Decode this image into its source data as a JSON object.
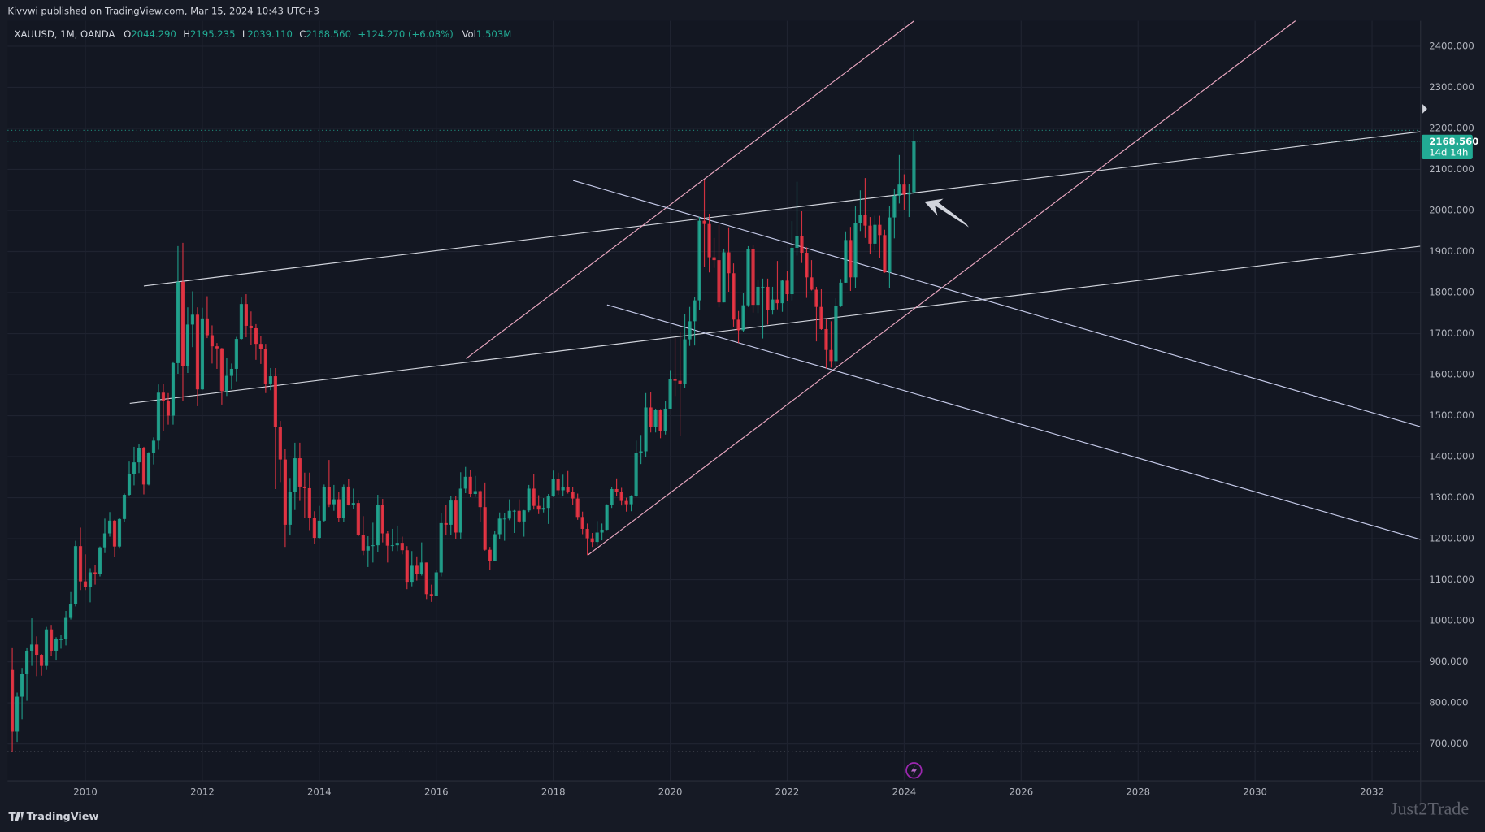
{
  "header": {
    "publisher": "Kivvwi published on TradingView.com, Mar 15, 2024 10:43 UTC+3"
  },
  "footer": {
    "brand": "TradingView",
    "watermark": "Just2Trade"
  },
  "chart_data": {
    "type": "candlestick",
    "legend": {
      "symbol": "XAUUSD, 1M, OANDA",
      "o_label": "O",
      "o": "2044.290",
      "h_label": "H",
      "h": "2195.235",
      "l_label": "L",
      "l": "2039.110",
      "c_label": "C",
      "c": "2168.560",
      "change": "+124.270 (+6.08%)",
      "vol_label": "Vol",
      "vol": "1.503M"
    },
    "last_price_label": "2168.560",
    "countdown": "14d 14h",
    "up_color": "#22ab94",
    "down_color": "#f23645",
    "xlim": [
      2008.67,
      2032.83
    ],
    "ylim": [
      610,
      2462
    ],
    "xticks": [
      2010,
      2012,
      2014,
      2016,
      2018,
      2020,
      2022,
      2024,
      2026,
      2028,
      2030,
      2032
    ],
    "yticks": [
      {
        "value": 700,
        "label": "700.000"
      },
      {
        "value": 800,
        "label": "800.000"
      },
      {
        "value": 900,
        "label": "900.000"
      },
      {
        "value": 1000,
        "label": "1000.000"
      },
      {
        "value": 1100,
        "label": "1100.000"
      },
      {
        "value": 1200,
        "label": "1200.000"
      },
      {
        "value": 1300,
        "label": "1300.000"
      },
      {
        "value": 1400,
        "label": "1400.000"
      },
      {
        "value": 1500,
        "label": "1500.000"
      },
      {
        "value": 1600,
        "label": "1600.000"
      },
      {
        "value": 1700,
        "label": "1700.000"
      },
      {
        "value": 1800,
        "label": "1800.000"
      },
      {
        "value": 1900,
        "label": "1900.000"
      },
      {
        "value": 2000,
        "label": "2000.000"
      },
      {
        "value": 2100,
        "label": "2100.000"
      },
      {
        "value": 2200,
        "label": "2200.000"
      },
      {
        "value": 2300,
        "label": "2300.000"
      },
      {
        "value": 2400,
        "label": "2400.000"
      }
    ],
    "grid": true,
    "trendlines": [
      {
        "x": [
          2011.0,
          2032.83
        ],
        "y": [
          1816,
          2192
        ],
        "color": "#d1d4dc"
      },
      {
        "x": [
          2010.76,
          2032.83
        ],
        "y": [
          1530,
          1913
        ],
        "color": "#d1d4dc"
      },
      {
        "x": [
          2016.51,
          2024.17
        ],
        "y": [
          1639,
          2462
        ],
        "color": "#e8a6bf"
      },
      {
        "x": [
          2018.6,
          2030.69
        ],
        "y": [
          1161,
          2462
        ],
        "color": "#e8a6bf"
      },
      {
        "x": [
          2018.34,
          2032.83
        ],
        "y": [
          2073,
          1473
        ],
        "color": "#c5cae9"
      },
      {
        "x": [
          2018.92,
          2032.83
        ],
        "y": [
          1770,
          1198
        ],
        "color": "#c5cae9"
      }
    ],
    "candles": [
      [
        2008.75,
        880,
        935,
        681,
        730
      ],
      [
        2008.833,
        730,
        825,
        705,
        815
      ],
      [
        2008.917,
        815,
        885,
        760,
        870
      ],
      [
        2009,
        870,
        935,
        805,
        927
      ],
      [
        2009.083,
        927,
        1006,
        890,
        942
      ],
      [
        2009.167,
        942,
        962,
        865,
        917
      ],
      [
        2009.25,
        917,
        919,
        866,
        890
      ],
      [
        2009.333,
        890,
        985,
        880,
        979
      ],
      [
        2009.417,
        979,
        990,
        915,
        927
      ],
      [
        2009.5,
        927,
        960,
        905,
        955
      ],
      [
        2009.583,
        955,
        965,
        932,
        955
      ],
      [
        2009.667,
        955,
        1024,
        940,
        1007
      ],
      [
        2009.75,
        1007,
        1070,
        1003,
        1040
      ],
      [
        2009.833,
        1040,
        1195,
        1035,
        1182
      ],
      [
        2009.917,
        1182,
        1227,
        1075,
        1096
      ],
      [
        2010,
        1096,
        1162,
        1075,
        1082
      ],
      [
        2010.083,
        1082,
        1128,
        1045,
        1118
      ],
      [
        2010.167,
        1118,
        1135,
        1088,
        1113
      ],
      [
        2010.25,
        1113,
        1181,
        1108,
        1179
      ],
      [
        2010.333,
        1179,
        1249,
        1165,
        1213
      ],
      [
        2010.417,
        1213,
        1265,
        1205,
        1244
      ],
      [
        2010.5,
        1244,
        1246,
        1155,
        1181
      ],
      [
        2010.583,
        1181,
        1250,
        1176,
        1248
      ],
      [
        2010.667,
        1248,
        1310,
        1240,
        1307
      ],
      [
        2010.75,
        1307,
        1388,
        1305,
        1357
      ],
      [
        2010.833,
        1357,
        1424,
        1330,
        1386
      ],
      [
        2010.917,
        1386,
        1431,
        1360,
        1421
      ],
      [
        2011,
        1421,
        1424,
        1308,
        1332
      ],
      [
        2011.083,
        1332,
        1411,
        1330,
        1410
      ],
      [
        2011.167,
        1410,
        1447,
        1381,
        1439
      ],
      [
        2011.25,
        1439,
        1576,
        1417,
        1556
      ],
      [
        2011.333,
        1556,
        1577,
        1462,
        1536
      ],
      [
        2011.417,
        1536,
        1555,
        1478,
        1500
      ],
      [
        2011.5,
        1500,
        1632,
        1478,
        1628
      ],
      [
        2011.583,
        1628,
        1913,
        1602,
        1826
      ],
      [
        2011.667,
        1826,
        1921,
        1535,
        1620
      ],
      [
        2011.75,
        1620,
        1764,
        1604,
        1722
      ],
      [
        2011.833,
        1722,
        1803,
        1667,
        1746
      ],
      [
        2011.917,
        1746,
        1764,
        1523,
        1564
      ],
      [
        2012,
        1564,
        1763,
        1563,
        1737
      ],
      [
        2012.083,
        1737,
        1791,
        1689,
        1696
      ],
      [
        2012.167,
        1696,
        1720,
        1627,
        1669
      ],
      [
        2012.25,
        1669,
        1677,
        1614,
        1664
      ],
      [
        2012.333,
        1664,
        1665,
        1527,
        1560
      ],
      [
        2012.417,
        1560,
        1640,
        1548,
        1597
      ],
      [
        2012.5,
        1597,
        1627,
        1564,
        1614
      ],
      [
        2012.583,
        1614,
        1692,
        1583,
        1687
      ],
      [
        2012.667,
        1687,
        1788,
        1685,
        1772
      ],
      [
        2012.75,
        1772,
        1796,
        1691,
        1719
      ],
      [
        2012.833,
        1719,
        1754,
        1672,
        1713
      ],
      [
        2012.917,
        1713,
        1723,
        1636,
        1675
      ],
      [
        2013,
        1675,
        1695,
        1626,
        1663
      ],
      [
        2013.083,
        1663,
        1675,
        1555,
        1578
      ],
      [
        2013.167,
        1578,
        1616,
        1562,
        1596
      ],
      [
        2013.25,
        1596,
        1616,
        1321,
        1472
      ],
      [
        2013.333,
        1472,
        1487,
        1338,
        1393
      ],
      [
        2013.417,
        1393,
        1418,
        1180,
        1234
      ],
      [
        2013.5,
        1234,
        1348,
        1208,
        1313
      ],
      [
        2013.583,
        1313,
        1434,
        1270,
        1396
      ],
      [
        2013.667,
        1396,
        1434,
        1292,
        1327
      ],
      [
        2013.75,
        1327,
        1361,
        1251,
        1323
      ],
      [
        2013.833,
        1323,
        1361,
        1221,
        1250
      ],
      [
        2013.917,
        1250,
        1267,
        1187,
        1202
      ],
      [
        2014,
        1202,
        1280,
        1200,
        1244
      ],
      [
        2014.083,
        1244,
        1332,
        1240,
        1326
      ],
      [
        2014.167,
        1326,
        1392,
        1277,
        1284
      ],
      [
        2014.25,
        1284,
        1331,
        1268,
        1296
      ],
      [
        2014.333,
        1296,
        1315,
        1240,
        1250
      ],
      [
        2014.417,
        1250,
        1332,
        1241,
        1327
      ],
      [
        2014.5,
        1327,
        1345,
        1281,
        1282
      ],
      [
        2014.583,
        1282,
        1322,
        1273,
        1287
      ],
      [
        2014.667,
        1287,
        1293,
        1206,
        1210
      ],
      [
        2014.75,
        1210,
        1255,
        1160,
        1171
      ],
      [
        2014.833,
        1171,
        1206,
        1131,
        1182
      ],
      [
        2014.917,
        1182,
        1239,
        1142,
        1184
      ],
      [
        2015,
        1184,
        1307,
        1167,
        1283
      ],
      [
        2015.083,
        1283,
        1297,
        1191,
        1213
      ],
      [
        2015.167,
        1213,
        1219,
        1142,
        1183
      ],
      [
        2015.25,
        1183,
        1224,
        1170,
        1184
      ],
      [
        2015.333,
        1184,
        1232,
        1170,
        1190
      ],
      [
        2015.417,
        1190,
        1205,
        1162,
        1172
      ],
      [
        2015.5,
        1172,
        1182,
        1077,
        1095
      ],
      [
        2015.583,
        1095,
        1170,
        1084,
        1134
      ],
      [
        2015.667,
        1134,
        1157,
        1098,
        1115
      ],
      [
        2015.75,
        1115,
        1191,
        1110,
        1142
      ],
      [
        2015.833,
        1142,
        1142,
        1053,
        1065
      ],
      [
        2015.917,
        1065,
        1088,
        1046,
        1061
      ],
      [
        2016,
        1061,
        1123,
        1061,
        1118
      ],
      [
        2016.083,
        1118,
        1263,
        1108,
        1238
      ],
      [
        2016.167,
        1238,
        1283,
        1208,
        1234
      ],
      [
        2016.25,
        1234,
        1304,
        1209,
        1293
      ],
      [
        2016.333,
        1293,
        1304,
        1200,
        1215
      ],
      [
        2016.417,
        1215,
        1362,
        1199,
        1322
      ],
      [
        2016.5,
        1322,
        1375,
        1311,
        1351
      ],
      [
        2016.583,
        1351,
        1367,
        1301,
        1309
      ],
      [
        2016.667,
        1309,
        1353,
        1302,
        1316
      ],
      [
        2016.75,
        1316,
        1318,
        1241,
        1277
      ],
      [
        2016.833,
        1277,
        1337,
        1171,
        1173
      ],
      [
        2016.917,
        1173,
        1180,
        1123,
        1146
      ],
      [
        2017,
        1146,
        1220,
        1146,
        1211
      ],
      [
        2017.083,
        1211,
        1264,
        1200,
        1249
      ],
      [
        2017.167,
        1249,
        1262,
        1195,
        1249
      ],
      [
        2017.25,
        1249,
        1296,
        1245,
        1268
      ],
      [
        2017.333,
        1268,
        1270,
        1214,
        1268
      ],
      [
        2017.417,
        1268,
        1296,
        1238,
        1242
      ],
      [
        2017.5,
        1242,
        1270,
        1205,
        1269
      ],
      [
        2017.583,
        1269,
        1331,
        1265,
        1322
      ],
      [
        2017.667,
        1322,
        1357,
        1271,
        1280
      ],
      [
        2017.75,
        1280,
        1306,
        1260,
        1271
      ],
      [
        2017.833,
        1271,
        1299,
        1264,
        1275
      ],
      [
        2017.917,
        1275,
        1309,
        1236,
        1303
      ],
      [
        2018,
        1303,
        1366,
        1302,
        1345
      ],
      [
        2018.083,
        1345,
        1361,
        1307,
        1318
      ],
      [
        2018.167,
        1318,
        1356,
        1303,
        1325
      ],
      [
        2018.25,
        1325,
        1365,
        1310,
        1315
      ],
      [
        2018.333,
        1315,
        1326,
        1282,
        1298
      ],
      [
        2018.417,
        1298,
        1310,
        1246,
        1253
      ],
      [
        2018.5,
        1253,
        1266,
        1211,
        1224
      ],
      [
        2018.583,
        1224,
        1237,
        1160,
        1201
      ],
      [
        2018.667,
        1201,
        1214,
        1180,
        1192
      ],
      [
        2018.75,
        1192,
        1243,
        1183,
        1215
      ],
      [
        2018.833,
        1215,
        1237,
        1196,
        1222
      ],
      [
        2018.917,
        1222,
        1284,
        1221,
        1282
      ],
      [
        2019,
        1282,
        1326,
        1275,
        1321
      ],
      [
        2019.083,
        1321,
        1347,
        1303,
        1313
      ],
      [
        2019.167,
        1313,
        1324,
        1281,
        1292
      ],
      [
        2019.25,
        1292,
        1300,
        1266,
        1284
      ],
      [
        2019.333,
        1284,
        1306,
        1267,
        1305
      ],
      [
        2019.417,
        1305,
        1439,
        1301,
        1409
      ],
      [
        2019.5,
        1409,
        1453,
        1382,
        1413
      ],
      [
        2019.583,
        1413,
        1555,
        1400,
        1520
      ],
      [
        2019.667,
        1520,
        1557,
        1459,
        1472
      ],
      [
        2019.75,
        1472,
        1517,
        1459,
        1513
      ],
      [
        2019.833,
        1513,
        1516,
        1445,
        1463
      ],
      [
        2019.917,
        1463,
        1535,
        1454,
        1517
      ],
      [
        2020,
        1517,
        1611,
        1517,
        1589
      ],
      [
        2020.083,
        1589,
        1689,
        1548,
        1585
      ],
      [
        2020.167,
        1585,
        1703,
        1451,
        1577
      ],
      [
        2020.25,
        1577,
        1747,
        1567,
        1686
      ],
      [
        2020.333,
        1686,
        1765,
        1670,
        1730
      ],
      [
        2020.417,
        1730,
        1789,
        1671,
        1781
      ],
      [
        2020.5,
        1781,
        1984,
        1757,
        1975
      ],
      [
        2020.583,
        1975,
        2075,
        1863,
        1967
      ],
      [
        2020.667,
        1967,
        1992,
        1849,
        1886
      ],
      [
        2020.75,
        1886,
        1933,
        1860,
        1879
      ],
      [
        2020.833,
        1879,
        1965,
        1764,
        1776
      ],
      [
        2020.917,
        1776,
        1907,
        1776,
        1898
      ],
      [
        2021,
        1898,
        1959,
        1802,
        1847
      ],
      [
        2021.083,
        1847,
        1871,
        1717,
        1734
      ],
      [
        2021.167,
        1734,
        1755,
        1677,
        1708
      ],
      [
        2021.25,
        1708,
        1798,
        1705,
        1769
      ],
      [
        2021.333,
        1769,
        1913,
        1765,
        1906
      ],
      [
        2021.417,
        1906,
        1916,
        1751,
        1770
      ],
      [
        2021.5,
        1770,
        1832,
        1750,
        1814
      ],
      [
        2021.583,
        1814,
        1834,
        1688,
        1814
      ],
      [
        2021.667,
        1814,
        1834,
        1722,
        1757
      ],
      [
        2021.75,
        1757,
        1814,
        1746,
        1783
      ],
      [
        2021.833,
        1783,
        1877,
        1759,
        1774
      ],
      [
        2021.917,
        1774,
        1831,
        1753,
        1829
      ],
      [
        2022,
        1829,
        1853,
        1780,
        1796
      ],
      [
        2022.083,
        1796,
        1974,
        1781,
        1909
      ],
      [
        2022.167,
        1909,
        2070,
        1890,
        1937
      ],
      [
        2022.25,
        1937,
        1998,
        1872,
        1897
      ],
      [
        2022.333,
        1897,
        1910,
        1787,
        1837
      ],
      [
        2022.417,
        1837,
        1879,
        1805,
        1807
      ],
      [
        2022.5,
        1807,
        1814,
        1681,
        1765
      ],
      [
        2022.583,
        1765,
        1808,
        1709,
        1711
      ],
      [
        2022.667,
        1711,
        1735,
        1615,
        1660
      ],
      [
        2022.75,
        1660,
        1730,
        1617,
        1633
      ],
      [
        2022.833,
        1633,
        1786,
        1616,
        1768
      ],
      [
        2022.917,
        1768,
        1833,
        1765,
        1824
      ],
      [
        2023,
        1824,
        1949,
        1824,
        1928
      ],
      [
        2023.083,
        1928,
        1960,
        1804,
        1837
      ],
      [
        2023.167,
        1837,
        2010,
        1810,
        1969
      ],
      [
        2023.25,
        1969,
        2049,
        1950,
        1990
      ],
      [
        2023.333,
        1990,
        2079,
        1933,
        1963
      ],
      [
        2023.417,
        1963,
        1984,
        1893,
        1919
      ],
      [
        2023.5,
        1919,
        1987,
        1903,
        1965
      ],
      [
        2023.583,
        1965,
        1987,
        1885,
        1940
      ],
      [
        2023.667,
        1940,
        1953,
        1848,
        1849
      ],
      [
        2023.75,
        1849,
        2010,
        1810,
        1983
      ],
      [
        2023.833,
        1983,
        2052,
        1932,
        2036
      ],
      [
        2023.917,
        2036,
        2135,
        2017,
        2063
      ],
      [
        2024,
        2063,
        2088,
        2002,
        2039
      ],
      [
        2024.083,
        2039,
        2065,
        1984,
        2044
      ],
      [
        2024.167,
        2044.29,
        2195.235,
        2039.11,
        2168.56
      ]
    ]
  }
}
